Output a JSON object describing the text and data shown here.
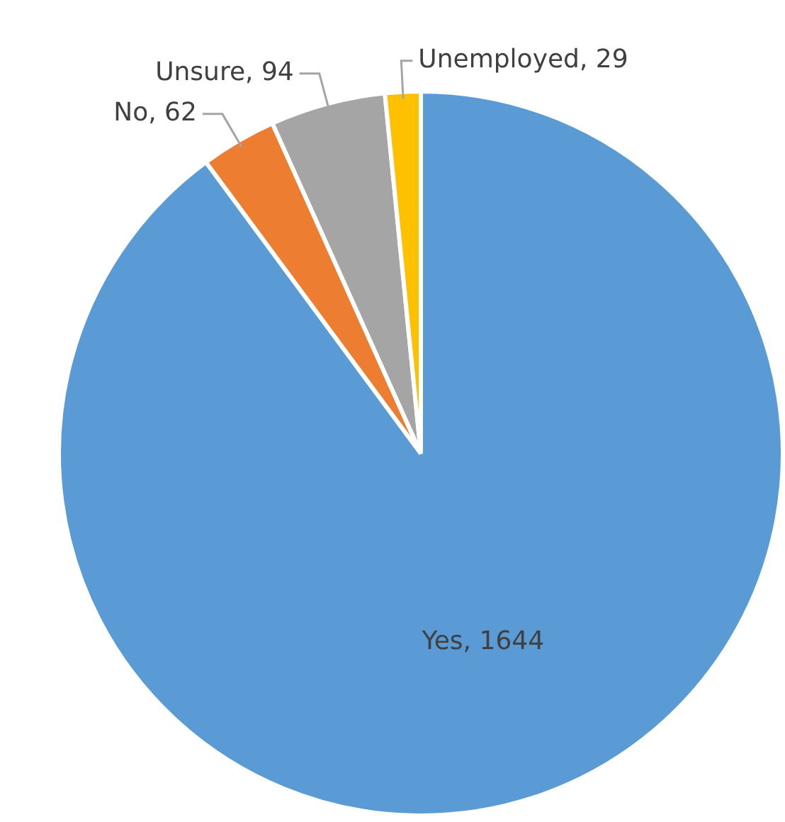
{
  "chart_data": {
    "type": "pie",
    "categories": [
      "Yes",
      "No",
      "Unsure",
      "Unemployed"
    ],
    "values": [
      1644,
      62,
      94,
      29
    ],
    "value_labels": [
      ", 1644",
      ", 62",
      ", 94",
      ", 29"
    ],
    "colors": [
      "#5b9bd5",
      "#ed7d31",
      "#a5a5a5",
      "#ffc000"
    ],
    "legend": false
  }
}
